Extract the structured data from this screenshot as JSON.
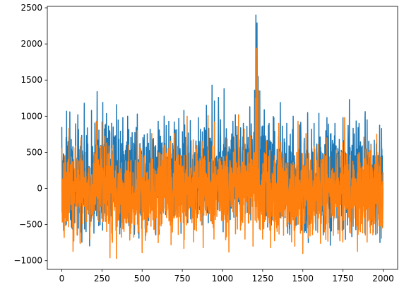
{
  "chart_data": {
    "type": "line",
    "title": "",
    "xlabel": "",
    "ylabel": "",
    "xlim": [
      -90,
      2090
    ],
    "ylim": [
      -1120,
      2520
    ],
    "grid": false,
    "x_ticks": [
      0,
      250,
      500,
      750,
      1000,
      1250,
      1500,
      1750,
      2000
    ],
    "y_ticks": [
      -1000,
      -500,
      0,
      500,
      1000,
      1500,
      2000,
      2500
    ],
    "x_tick_labels": [
      "0",
      "250",
      "500",
      "750",
      "1000",
      "1250",
      "1500",
      "1750",
      "2000"
    ],
    "y_tick_labels": [
      "−1000",
      "−500",
      "0",
      "500",
      "1000",
      "1500",
      "2000",
      "2500"
    ],
    "n_points": 2000,
    "x_range": [
      0,
      1999
    ],
    "series": [
      {
        "color": "#1f77b4",
        "keypoints": [
          [
            0,
            850
          ],
          [
            15,
            -580
          ],
          [
            30,
            1070
          ],
          [
            50,
            1060
          ],
          [
            65,
            -560
          ],
          [
            90,
            420
          ],
          [
            100,
            1020
          ],
          [
            140,
            1180
          ],
          [
            185,
            1080
          ],
          [
            200,
            -620
          ],
          [
            220,
            1340
          ],
          [
            255,
            1190
          ],
          [
            270,
            880
          ],
          [
            300,
            -600
          ],
          [
            320,
            850
          ],
          [
            340,
            1160
          ],
          [
            380,
            980
          ],
          [
            410,
            1000
          ],
          [
            440,
            -280
          ],
          [
            470,
            1030
          ],
          [
            480,
            -690
          ],
          [
            510,
            590
          ],
          [
            550,
            820
          ],
          [
            600,
            930
          ],
          [
            650,
            870
          ],
          [
            700,
            920
          ],
          [
            760,
            1080
          ],
          [
            800,
            940
          ],
          [
            850,
            980
          ],
          [
            900,
            1150
          ],
          [
            935,
            1430
          ],
          [
            950,
            1210
          ],
          [
            975,
            1260
          ],
          [
            1010,
            1380
          ],
          [
            1080,
            1020
          ],
          [
            1130,
            900
          ],
          [
            1170,
            1130
          ],
          [
            1200,
            1360
          ],
          [
            1208,
            2400
          ],
          [
            1215,
            2290
          ],
          [
            1222,
            1550
          ],
          [
            1232,
            1350
          ],
          [
            1260,
            1090
          ],
          [
            1290,
            900
          ],
          [
            1320,
            980
          ],
          [
            1360,
            1190
          ],
          [
            1400,
            900
          ],
          [
            1440,
            1000
          ],
          [
            1480,
            880
          ],
          [
            1500,
            -630
          ],
          [
            1530,
            1050
          ],
          [
            1570,
            900
          ],
          [
            1600,
            1040
          ],
          [
            1650,
            980
          ],
          [
            1700,
            900
          ],
          [
            1750,
            980
          ],
          [
            1790,
            1230
          ],
          [
            1850,
            900
          ],
          [
            1900,
            950
          ],
          [
            1990,
            830
          ]
        ],
        "upper_envelope": [
          [
            0,
            780
          ],
          [
            200,
            800
          ],
          [
            400,
            780
          ],
          [
            600,
            760
          ],
          [
            800,
            740
          ],
          [
            900,
            830
          ],
          [
            1000,
            860
          ],
          [
            1100,
            800
          ],
          [
            1200,
            950
          ],
          [
            1250,
            880
          ],
          [
            1300,
            760
          ],
          [
            1400,
            720
          ],
          [
            1600,
            730
          ],
          [
            1800,
            760
          ],
          [
            1999,
            770
          ]
        ],
        "lower_envelope": [
          [
            0,
            -520
          ],
          [
            200,
            -560
          ],
          [
            400,
            -580
          ],
          [
            600,
            -560
          ],
          [
            800,
            -480
          ],
          [
            900,
            -380
          ],
          [
            1000,
            -420
          ],
          [
            1100,
            -450
          ],
          [
            1200,
            -300
          ],
          [
            1250,
            -420
          ],
          [
            1300,
            -520
          ],
          [
            1500,
            -560
          ],
          [
            1700,
            -540
          ],
          [
            1999,
            -560
          ]
        ]
      },
      {
        "color": "#ff7f0e",
        "keypoints": [
          [
            0,
            560
          ],
          [
            10,
            -580
          ],
          [
            45,
            830
          ],
          [
            70,
            -870
          ],
          [
            95,
            -640
          ],
          [
            115,
            -760
          ],
          [
            120,
            700
          ],
          [
            175,
            -700
          ],
          [
            215,
            930
          ],
          [
            235,
            -300
          ],
          [
            250,
            920
          ],
          [
            300,
            -960
          ],
          [
            320,
            600
          ],
          [
            340,
            -970
          ],
          [
            380,
            -560
          ],
          [
            430,
            -550
          ],
          [
            470,
            800
          ],
          [
            500,
            -890
          ],
          [
            520,
            -720
          ],
          [
            560,
            760
          ],
          [
            600,
            -750
          ],
          [
            640,
            600
          ],
          [
            680,
            -780
          ],
          [
            700,
            760
          ],
          [
            760,
            -830
          ],
          [
            780,
            1000
          ],
          [
            820,
            -740
          ],
          [
            880,
            -820
          ],
          [
            910,
            1010
          ],
          [
            950,
            920
          ],
          [
            1020,
            -710
          ],
          [
            1040,
            -880
          ],
          [
            1100,
            1020
          ],
          [
            1140,
            -700
          ],
          [
            1190,
            -800
          ],
          [
            1205,
            1250
          ],
          [
            1212,
            1940
          ],
          [
            1218,
            1550
          ],
          [
            1228,
            1350
          ],
          [
            1250,
            -700
          ],
          [
            1300,
            -820
          ],
          [
            1350,
            900
          ],
          [
            1380,
            -650
          ],
          [
            1430,
            -740
          ],
          [
            1450,
            -800
          ],
          [
            1470,
            930
          ],
          [
            1500,
            -900
          ],
          [
            1520,
            760
          ],
          [
            1560,
            -640
          ],
          [
            1610,
            -760
          ],
          [
            1650,
            700
          ],
          [
            1690,
            -650
          ],
          [
            1730,
            -700
          ],
          [
            1760,
            980
          ],
          [
            1800,
            -620
          ],
          [
            1840,
            -870
          ],
          [
            1880,
            710
          ],
          [
            1920,
            -620
          ],
          [
            1960,
            750
          ],
          [
            1990,
            -690
          ]
        ],
        "upper_envelope": [
          [
            0,
            480
          ],
          [
            200,
            520
          ],
          [
            400,
            500
          ],
          [
            600,
            490
          ],
          [
            800,
            470
          ],
          [
            900,
            560
          ],
          [
            1000,
            600
          ],
          [
            1100,
            560
          ],
          [
            1200,
            680
          ],
          [
            1250,
            560
          ],
          [
            1300,
            480
          ],
          [
            1500,
            460
          ],
          [
            1700,
            470
          ],
          [
            1999,
            480
          ]
        ],
        "lower_envelope": [
          [
            0,
            -560
          ],
          [
            200,
            -600
          ],
          [
            400,
            -640
          ],
          [
            600,
            -610
          ],
          [
            800,
            -560
          ],
          [
            900,
            -520
          ],
          [
            1000,
            -560
          ],
          [
            1100,
            -580
          ],
          [
            1200,
            -460
          ],
          [
            1250,
            -600
          ],
          [
            1300,
            -640
          ],
          [
            1500,
            -640
          ],
          [
            1700,
            -600
          ],
          [
            1999,
            -610
          ]
        ]
      }
    ]
  }
}
